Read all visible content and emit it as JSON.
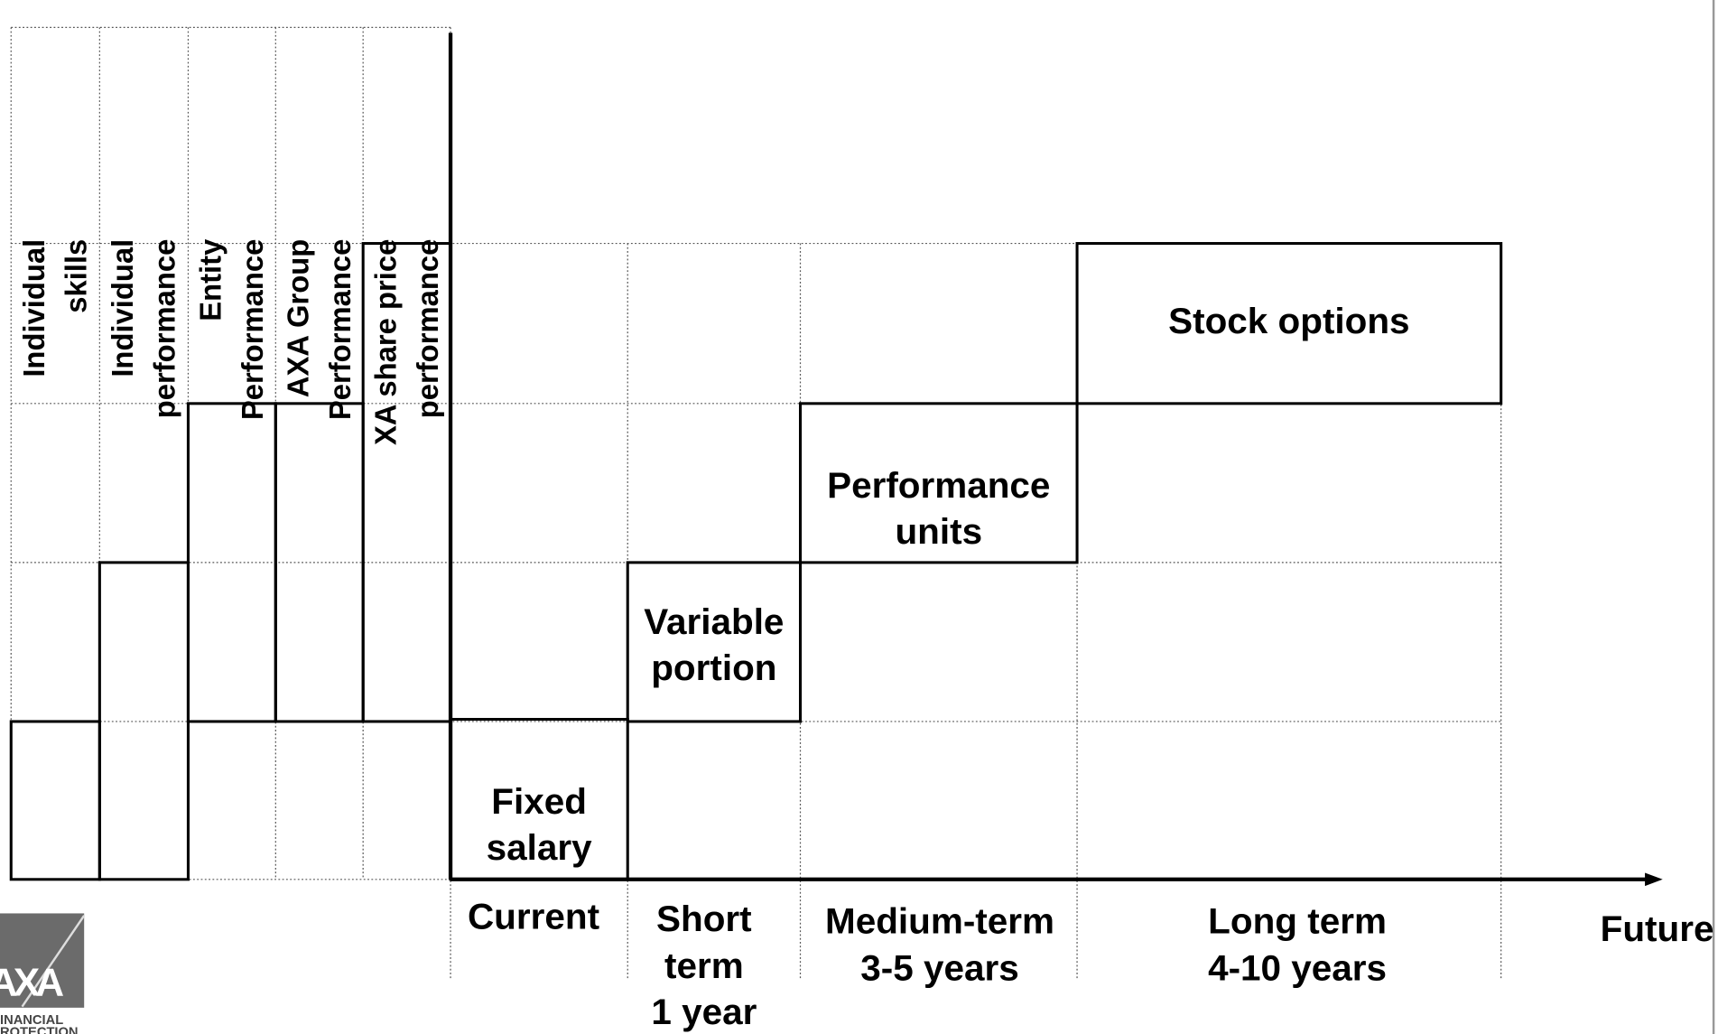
{
  "columns": [
    {
      "lines": [
        "Individual",
        "skills"
      ]
    },
    {
      "lines": [
        "Individual",
        "performance"
      ]
    },
    {
      "lines": [
        "Entity",
        "Performance"
      ]
    },
    {
      "lines": [
        "AXA Group",
        "Performance"
      ]
    },
    {
      "lines": [
        "XA share price",
        "performance"
      ]
    }
  ],
  "boxes": [
    {
      "lines": [
        "Fixed",
        "salary"
      ]
    },
    {
      "lines": [
        "Variable",
        "portion"
      ]
    },
    {
      "lines": [
        "Performance",
        "units"
      ]
    },
    {
      "lines": [
        "Stock options"
      ]
    }
  ],
  "periods": [
    {
      "lines": [
        "Current"
      ]
    },
    {
      "lines": [
        "Short",
        "term",
        "1 year"
      ]
    },
    {
      "lines": [
        "Medium-term",
        "3-5 years"
      ]
    },
    {
      "lines": [
        "Long term",
        "4-10 years"
      ]
    }
  ],
  "axis_end": "Future",
  "logo": {
    "mark": "AXA",
    "lines": [
      "INANCIAL",
      "ROTECTION"
    ]
  }
}
